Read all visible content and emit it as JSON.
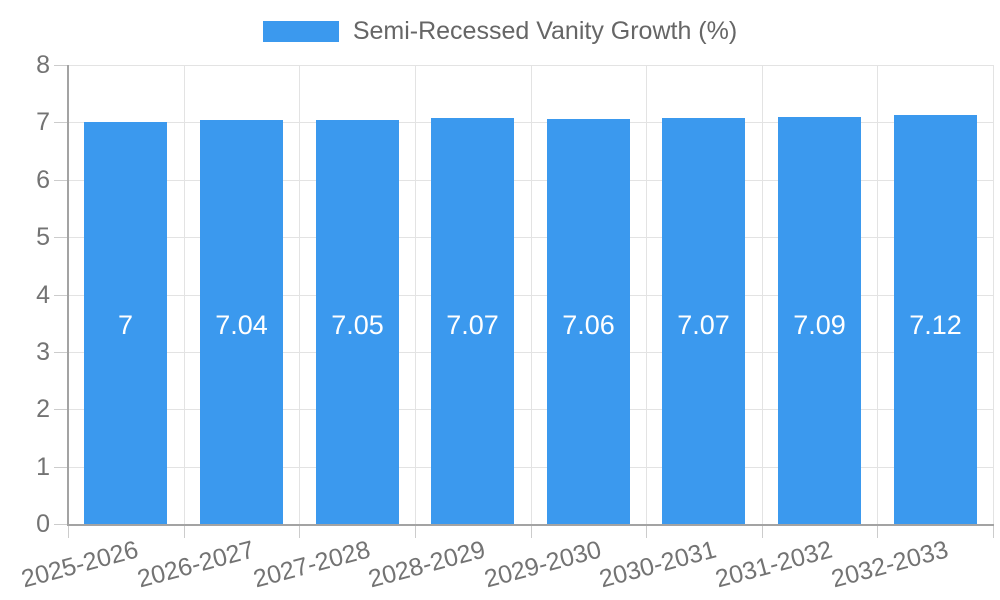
{
  "chart_data": {
    "type": "bar",
    "legend_label": "Semi-Recessed Vanity Growth (%)",
    "legend_position": "top",
    "categories": [
      "2025-2026",
      "2026-2027",
      "2027-2028",
      "2028-2029",
      "2029-2030",
      "2030-2031",
      "2031-2032",
      "2032-2033"
    ],
    "values": [
      7,
      7.04,
      7.05,
      7.07,
      7.06,
      7.07,
      7.09,
      7.12
    ],
    "value_labels": [
      "7",
      "7.04",
      "7.05",
      "7.07",
      "7.06",
      "7.07",
      "7.09",
      "7.12"
    ],
    "title": "",
    "xlabel": "",
    "ylabel": "",
    "ylim": [
      0,
      8
    ],
    "yticks": [
      0,
      1,
      2,
      3,
      4,
      5,
      6,
      7,
      8
    ],
    "grid": true,
    "colors": {
      "bar": "#3b99ee",
      "bar_label_text": "#ffffff",
      "grid_line": "#e3e3e3",
      "axis_line": "#a3a3a3",
      "tick_mark": "#cccccc",
      "tick_text": "#737373",
      "legend_text": "#666666",
      "background": "#ffffff"
    }
  }
}
